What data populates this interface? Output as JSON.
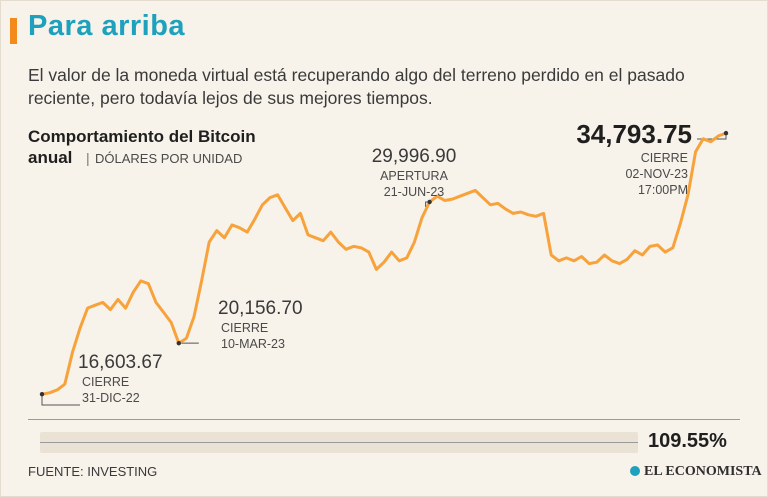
{
  "header": {
    "title": "Para arriba",
    "subtitle": "El valor de la moneda virtual está recuperando algo del terreno perdido en el pasado reciente, pero todavía lejos de sus mejores tiempos."
  },
  "chart_title": {
    "line1": "Comportamiento del Bitcoin",
    "line2": "anual",
    "separator": "|",
    "unit": "DÓLARES POR UNIDAD"
  },
  "annotations": {
    "a1": {
      "value": "16,603.67",
      "label": "CIERRE",
      "date": "31-DIC-22"
    },
    "a2": {
      "value": "20,156.70",
      "label": "CIERRE",
      "date": "10-MAR-23"
    },
    "a3": {
      "value": "29,996.90",
      "label": "APERTURA",
      "date": "21-JUN-23"
    },
    "a4": {
      "value": "34,793.75",
      "label": "CIERRE",
      "date": "02-NOV-23",
      "time": "17:00PM"
    }
  },
  "change": {
    "value": "109.55%",
    "fraction": 1.0955
  },
  "footer": {
    "source": "FUENTE: INVESTING",
    "brand": "EL ECONOMISTA"
  },
  "colors": {
    "line": "#f7a23b",
    "title": "#1da1bd",
    "accent": "#f28a1c",
    "background": "#f7f2ea"
  },
  "chart_data": {
    "type": "line",
    "title": "Comportamiento del Bitcoin anual",
    "ylabel": "DÓLARES POR UNIDAD",
    "ylim": [
      15500,
      35500
    ],
    "x_range": [
      "31-DIC-22",
      "02-NOV-23"
    ],
    "grid": false,
    "series": [
      {
        "values": [
          16603.67,
          16700,
          16900,
          17300,
          19500,
          21200,
          22600,
          22800,
          23000,
          22500,
          23200,
          22600,
          23700,
          24500,
          24300,
          23000,
          22300,
          21600,
          20156.7,
          20500,
          22000,
          24500,
          27200,
          28000,
          27500,
          28400,
          28200,
          27900,
          28800,
          29800,
          30300,
          30500,
          29600,
          28700,
          29200,
          27700,
          27500,
          27300,
          27900,
          27200,
          26700,
          26900,
          26800,
          26500,
          25300,
          25800,
          26500,
          25900,
          26100,
          27200,
          28900,
          29996.9,
          30400,
          30100,
          30200,
          30400,
          30600,
          30800,
          30300,
          29800,
          29900,
          29500,
          29200,
          29300,
          29100,
          29000,
          29200,
          26300,
          25900,
          26100,
          25900,
          26200,
          25700,
          25800,
          26300,
          25900,
          25700,
          26000,
          26600,
          26300,
          26900,
          27000,
          26500,
          26800,
          28500,
          30500,
          33500,
          34400,
          34200,
          34600,
          34793.75
        ]
      }
    ]
  }
}
